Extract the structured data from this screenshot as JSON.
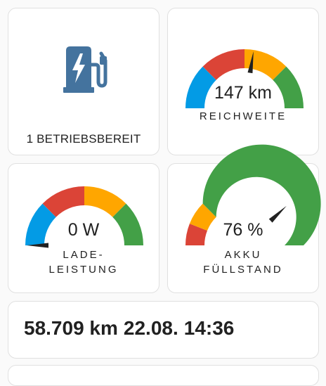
{
  "status_card": {
    "icon": "ev-charging-station-icon",
    "icon_color": "#44739e",
    "text": "1 BETRIEBSBEREIT"
  },
  "range_gauge": {
    "value": 147,
    "unit": "km",
    "display": "147 km",
    "label": "REICHWEITE",
    "needle_fraction": 0.55
  },
  "power_gauge": {
    "value": 0,
    "unit": "W",
    "display": "0 W",
    "label_line1": "LADE-",
    "label_line2": "LEISTUNG",
    "needle_fraction": 0.0
  },
  "battery_gauge": {
    "value": 76,
    "unit": "%",
    "display": "76 %",
    "label_line1": "AKKU",
    "label_line2": "FÜLLSTAND",
    "needle_fraction": 0.76
  },
  "mileage_card": {
    "odometer": "58.709 km",
    "date": "22.08.",
    "time": "14:36"
  },
  "colors": {
    "blue": "#039be5",
    "red": "#db4437",
    "orange": "#ffa600",
    "green": "#43a047",
    "needle": "#212121"
  }
}
